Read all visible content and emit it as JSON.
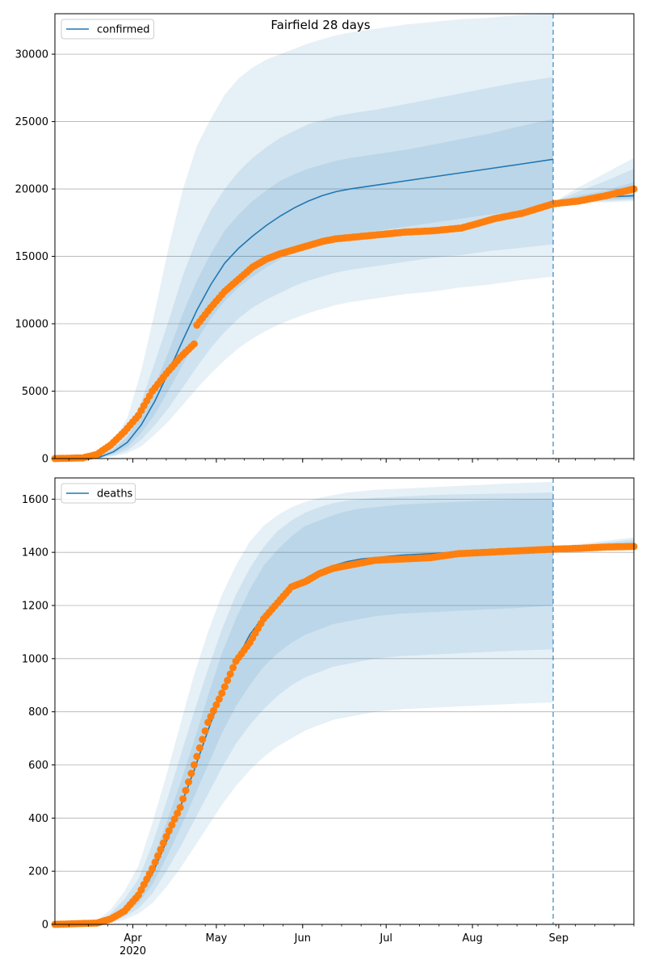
{
  "title": "Fairfield 28 days",
  "x_ticks": [
    {
      "label": "Apr",
      "date": "2020-04-01",
      "sub": "2020"
    },
    {
      "label": "May",
      "date": "2020-05-01",
      "sub": ""
    },
    {
      "label": "Jun",
      "date": "2020-06-01",
      "sub": ""
    },
    {
      "label": "Jul",
      "date": "2020-07-01",
      "sub": ""
    },
    {
      "label": "Aug",
      "date": "2020-08-01",
      "sub": ""
    },
    {
      "label": "Sep",
      "date": "2020-09-01",
      "sub": ""
    }
  ],
  "colors": {
    "model": "#1f77b4",
    "observed": "#ff7f0e",
    "band": "#1f77b4",
    "grid": "#b0b0b0"
  },
  "chart_data": [
    {
      "type": "line",
      "legend": "confirmed",
      "legend_position": "top-left",
      "grid": "horizontal",
      "xlim": [
        "2020-03-04",
        "2020-09-28"
      ],
      "ylim": [
        0,
        33000
      ],
      "y_ticks": [
        0,
        5000,
        10000,
        15000,
        20000,
        25000,
        30000
      ],
      "forecast_line_date": "2020-08-30",
      "model": {
        "x": [
          "2020-03-04",
          "2020-03-14",
          "2020-03-20",
          "2020-03-25",
          "2020-03-30",
          "2020-04-04",
          "2020-04-09",
          "2020-04-14",
          "2020-04-19",
          "2020-04-24",
          "2020-04-29",
          "2020-05-04",
          "2020-05-09",
          "2020-05-14",
          "2020-05-19",
          "2020-05-24",
          "2020-05-29",
          "2020-06-03",
          "2020-06-08",
          "2020-06-13",
          "2020-06-18",
          "2020-06-28",
          "2020-07-08",
          "2020-07-18",
          "2020-07-28",
          "2020-08-07",
          "2020-08-17",
          "2020-08-30"
        ],
        "median": [
          0,
          0,
          100,
          500,
          1200,
          2500,
          4300,
          6500,
          8800,
          11000,
          12900,
          14500,
          15600,
          16500,
          17300,
          18000,
          18600,
          19100,
          19500,
          19800,
          20000,
          20300,
          20600,
          20900,
          21200,
          21500,
          21800,
          22200
        ],
        "band50": [
          [
            0,
            0
          ],
          [
            0,
            0
          ],
          [
            70,
            140
          ],
          [
            350,
            680
          ],
          [
            850,
            1600
          ],
          [
            1900,
            3200
          ],
          [
            3300,
            5500
          ],
          [
            5100,
            8000
          ],
          [
            7000,
            10800
          ],
          [
            8800,
            13200
          ],
          [
            10400,
            15200
          ],
          [
            11700,
            16900
          ],
          [
            12700,
            18100
          ],
          [
            13500,
            19100
          ],
          [
            14200,
            19900
          ],
          [
            14800,
            20600
          ],
          [
            15300,
            21100
          ],
          [
            15700,
            21500
          ],
          [
            16000,
            21800
          ],
          [
            16300,
            22100
          ],
          [
            16500,
            22300
          ],
          [
            16900,
            22600
          ],
          [
            17200,
            22900
          ],
          [
            17500,
            23300
          ],
          [
            17800,
            23700
          ],
          [
            18100,
            24100
          ],
          [
            18300,
            24600
          ],
          [
            18600,
            25200
          ]
        ],
        "band80": [
          [
            0,
            0
          ],
          [
            0,
            0
          ],
          [
            40,
            200
          ],
          [
            250,
            900
          ],
          [
            600,
            2100
          ],
          [
            1400,
            4200
          ],
          [
            2500,
            7200
          ],
          [
            3800,
            10300
          ],
          [
            5300,
            13600
          ],
          [
            6800,
            16300
          ],
          [
            8200,
            18400
          ],
          [
            9400,
            20000
          ],
          [
            10400,
            21300
          ],
          [
            11200,
            22300
          ],
          [
            11800,
            23100
          ],
          [
            12300,
            23800
          ],
          [
            12800,
            24300
          ],
          [
            13200,
            24800
          ],
          [
            13500,
            25100
          ],
          [
            13800,
            25400
          ],
          [
            14000,
            25600
          ],
          [
            14300,
            25900
          ],
          [
            14600,
            26300
          ],
          [
            14900,
            26700
          ],
          [
            15100,
            27100
          ],
          [
            15400,
            27500
          ],
          [
            15600,
            27900
          ],
          [
            15900,
            28300
          ]
        ],
        "band95": [
          [
            0,
            0
          ],
          [
            0,
            0
          ],
          [
            20,
            300
          ],
          [
            150,
            1300
          ],
          [
            400,
            3000
          ],
          [
            900,
            6500
          ],
          [
            1800,
            11000
          ],
          [
            2800,
            15800
          ],
          [
            4000,
            20000
          ],
          [
            5200,
            23200
          ],
          [
            6300,
            25200
          ],
          [
            7300,
            27000
          ],
          [
            8200,
            28200
          ],
          [
            8900,
            29000
          ],
          [
            9500,
            29600
          ],
          [
            10000,
            30000
          ],
          [
            10400,
            30400
          ],
          [
            10800,
            30800
          ],
          [
            11100,
            31100
          ],
          [
            11400,
            31400
          ],
          [
            11600,
            31600
          ],
          [
            11900,
            31900
          ],
          [
            12200,
            32200
          ],
          [
            12400,
            32400
          ],
          [
            12700,
            32600
          ],
          [
            12900,
            32700
          ],
          [
            13200,
            32900
          ],
          [
            13500,
            33000
          ]
        ]
      },
      "post_model": {
        "x": [
          "2020-08-30",
          "2020-09-08",
          "2020-09-18",
          "2020-09-28"
        ],
        "median": [
          19000,
          19200,
          19400,
          19500
        ],
        "band50": [
          [
            19000,
            19000
          ],
          [
            19100,
            19500
          ],
          [
            19200,
            19900
          ],
          [
            19300,
            20500
          ]
        ],
        "band80": [
          [
            19000,
            19000
          ],
          [
            19050,
            19800
          ],
          [
            19100,
            20600
          ],
          [
            19200,
            21500
          ]
        ],
        "band95": [
          [
            19000,
            19000
          ],
          [
            19000,
            20100
          ],
          [
            19000,
            21200
          ],
          [
            19100,
            22300
          ]
        ]
      },
      "observed": {
        "x": [
          "2020-03-04",
          "2020-03-14",
          "2020-03-19",
          "2020-03-24",
          "2020-03-29",
          "2020-04-03",
          "2020-04-08",
          "2020-04-13",
          "2020-04-18",
          "2020-04-23",
          "2020-04-24",
          "2020-04-29",
          "2020-05-04",
          "2020-05-09",
          "2020-05-14",
          "2020-05-19",
          "2020-05-24",
          "2020-05-29",
          "2020-06-03",
          "2020-06-08",
          "2020-06-13",
          "2020-06-18",
          "2020-06-28",
          "2020-07-08",
          "2020-07-18",
          "2020-07-28",
          "2020-08-04",
          "2020-08-09",
          "2020-08-19",
          "2020-08-30",
          "2020-09-08",
          "2020-09-18",
          "2020-09-28"
        ],
        "y": [
          0,
          50,
          300,
          1000,
          2000,
          3200,
          5000,
          6300,
          7500,
          8500,
          9900,
          11200,
          12400,
          13300,
          14200,
          14800,
          15200,
          15500,
          15800,
          16100,
          16300,
          16400,
          16600,
          16800,
          16900,
          17100,
          17500,
          17800,
          18200,
          18900,
          19100,
          19500,
          20000
        ]
      }
    },
    {
      "type": "line",
      "legend": "deaths",
      "legend_position": "top-left",
      "grid": "horizontal",
      "xlim": [
        "2020-03-04",
        "2020-09-28"
      ],
      "ylim": [
        0,
        1680
      ],
      "y_ticks": [
        0,
        200,
        400,
        600,
        800,
        1000,
        1200,
        1400,
        1600
      ],
      "forecast_line_date": "2020-08-30",
      "model": {
        "x": [
          "2020-03-04",
          "2020-03-19",
          "2020-03-24",
          "2020-03-29",
          "2020-04-03",
          "2020-04-08",
          "2020-04-13",
          "2020-04-18",
          "2020-04-23",
          "2020-04-28",
          "2020-05-03",
          "2020-05-08",
          "2020-05-13",
          "2020-05-18",
          "2020-05-23",
          "2020-05-28",
          "2020-06-02",
          "2020-06-07",
          "2020-06-12",
          "2020-06-17",
          "2020-06-22",
          "2020-06-27",
          "2020-07-07",
          "2020-07-17",
          "2020-07-27",
          "2020-08-06",
          "2020-08-16",
          "2020-08-30"
        ],
        "median": [
          0,
          5,
          20,
          50,
          100,
          190,
          310,
          440,
          580,
          730,
          870,
          990,
          1090,
          1160,
          1220,
          1270,
          1300,
          1330,
          1350,
          1365,
          1375,
          1380,
          1390,
          1395,
          1400,
          1405,
          1410,
          1415
        ],
        "band50": [
          [
            0,
            0
          ],
          [
            3,
            7
          ],
          [
            15,
            28
          ],
          [
            38,
            70
          ],
          [
            80,
            130
          ],
          [
            150,
            240
          ],
          [
            250,
            380
          ],
          [
            360,
            530
          ],
          [
            480,
            690
          ],
          [
            600,
            860
          ],
          [
            720,
            1020
          ],
          [
            820,
            1150
          ],
          [
            900,
            1260
          ],
          [
            970,
            1350
          ],
          [
            1020,
            1410
          ],
          [
            1060,
            1460
          ],
          [
            1090,
            1500
          ],
          [
            1110,
            1520
          ],
          [
            1130,
            1540
          ],
          [
            1140,
            1555
          ],
          [
            1150,
            1565
          ],
          [
            1160,
            1570
          ],
          [
            1170,
            1580
          ],
          [
            1175,
            1585
          ],
          [
            1180,
            1590
          ],
          [
            1185,
            1595
          ],
          [
            1190,
            1598
          ],
          [
            1200,
            1600
          ]
        ],
        "band80": [
          [
            0,
            0
          ],
          [
            2,
            10
          ],
          [
            10,
            40
          ],
          [
            28,
            95
          ],
          [
            60,
            170
          ],
          [
            115,
            300
          ],
          [
            200,
            460
          ],
          [
            290,
            630
          ],
          [
            390,
            800
          ],
          [
            490,
            960
          ],
          [
            590,
            1110
          ],
          [
            680,
            1240
          ],
          [
            750,
            1340
          ],
          [
            810,
            1420
          ],
          [
            860,
            1480
          ],
          [
            900,
            1520
          ],
          [
            930,
            1550
          ],
          [
            950,
            1570
          ],
          [
            970,
            1585
          ],
          [
            980,
            1595
          ],
          [
            990,
            1600
          ],
          [
            1000,
            1605
          ],
          [
            1010,
            1610
          ],
          [
            1015,
            1615
          ],
          [
            1020,
            1618
          ],
          [
            1025,
            1620
          ],
          [
            1030,
            1622
          ],
          [
            1035,
            1625
          ]
        ],
        "band95": [
          [
            0,
            0
          ],
          [
            1,
            14
          ],
          [
            6,
            55
          ],
          [
            18,
            125
          ],
          [
            40,
            220
          ],
          [
            80,
            380
          ],
          [
            140,
            560
          ],
          [
            210,
            750
          ],
          [
            290,
            940
          ],
          [
            370,
            1100
          ],
          [
            450,
            1240
          ],
          [
            520,
            1350
          ],
          [
            580,
            1440
          ],
          [
            630,
            1500
          ],
          [
            670,
            1540
          ],
          [
            700,
            1570
          ],
          [
            730,
            1590
          ],
          [
            750,
            1605
          ],
          [
            770,
            1615
          ],
          [
            780,
            1625
          ],
          [
            790,
            1630
          ],
          [
            800,
            1635
          ],
          [
            810,
            1640
          ],
          [
            815,
            1645
          ],
          [
            820,
            1650
          ],
          [
            825,
            1655
          ],
          [
            830,
            1660
          ],
          [
            835,
            1665
          ]
        ]
      },
      "post_model": {
        "x": [
          "2020-08-30",
          "2020-09-08",
          "2020-09-18",
          "2020-09-28"
        ],
        "median": [
          1412,
          1416,
          1420,
          1424
        ],
        "band50": [
          [
            1412,
            1412
          ],
          [
            1413,
            1422
          ],
          [
            1414,
            1432
          ],
          [
            1415,
            1440
          ]
        ],
        "band80": [
          [
            1412,
            1412
          ],
          [
            1412,
            1426
          ],
          [
            1413,
            1438
          ],
          [
            1414,
            1448
          ]
        ],
        "band95": [
          [
            1412,
            1412
          ],
          [
            1411,
            1430
          ],
          [
            1412,
            1444
          ],
          [
            1412,
            1456
          ]
        ]
      },
      "observed": {
        "x": [
          "2020-03-04",
          "2020-03-19",
          "2020-03-24",
          "2020-03-29",
          "2020-04-03",
          "2020-04-08",
          "2020-04-13",
          "2020-04-18",
          "2020-04-23",
          "2020-04-28",
          "2020-05-03",
          "2020-05-08",
          "2020-05-13",
          "2020-05-18",
          "2020-05-23",
          "2020-05-28",
          "2020-06-02",
          "2020-06-07",
          "2020-06-12",
          "2020-06-17",
          "2020-06-22",
          "2020-06-27",
          "2020-07-07",
          "2020-07-17",
          "2020-07-27",
          "2020-08-06",
          "2020-08-16",
          "2020-08-30",
          "2020-09-08",
          "2020-09-18",
          "2020-09-28"
        ],
        "y": [
          0,
          5,
          20,
          50,
          110,
          210,
          330,
          440,
          600,
          760,
          870,
          990,
          1060,
          1150,
          1210,
          1270,
          1290,
          1320,
          1340,
          1350,
          1360,
          1370,
          1375,
          1380,
          1395,
          1400,
          1405,
          1412,
          1415,
          1420,
          1422
        ]
      }
    }
  ]
}
